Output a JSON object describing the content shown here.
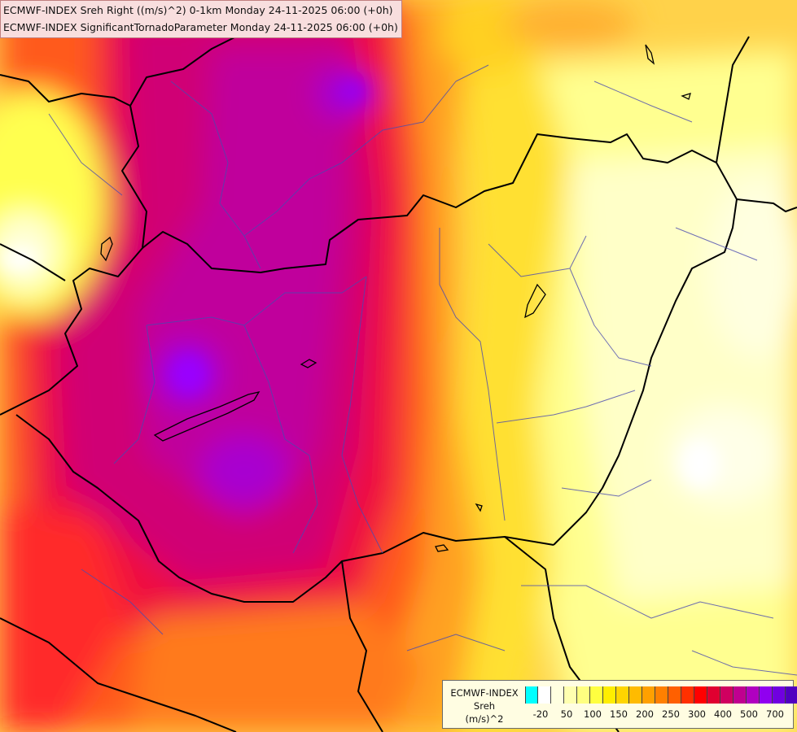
{
  "title": {
    "line1": "ECMWF-INDEX Sreh Right ((m/s)^2) 0-1km Monday 24-11-2025 06:00 (+0h)",
    "line2": "ECMWF-INDEX SignificantTornadoParameter Monday 24-11-2025 06:00 (+0h)"
  },
  "legend": {
    "model": "ECMWF-INDEX",
    "variable": "Sreh",
    "unit": "(m/s)^2",
    "tick_labels": [
      "-20",
      "50",
      "100",
      "150",
      "200",
      "250",
      "300",
      "400",
      "500",
      "700"
    ],
    "colors": [
      "#00ffff",
      "#ffffff",
      "#ffffe0",
      "#ffffb0",
      "#ffff80",
      "#ffff40",
      "#ffee00",
      "#ffd500",
      "#ffbb00",
      "#ffa000",
      "#ff8000",
      "#ff6000",
      "#ff3000",
      "#ff0000",
      "#e00030",
      "#d00060",
      "#c00090",
      "#b000c0",
      "#9000f0",
      "#7000e0",
      "#5000c0",
      "#3000a0",
      "#000080"
    ]
  }
}
